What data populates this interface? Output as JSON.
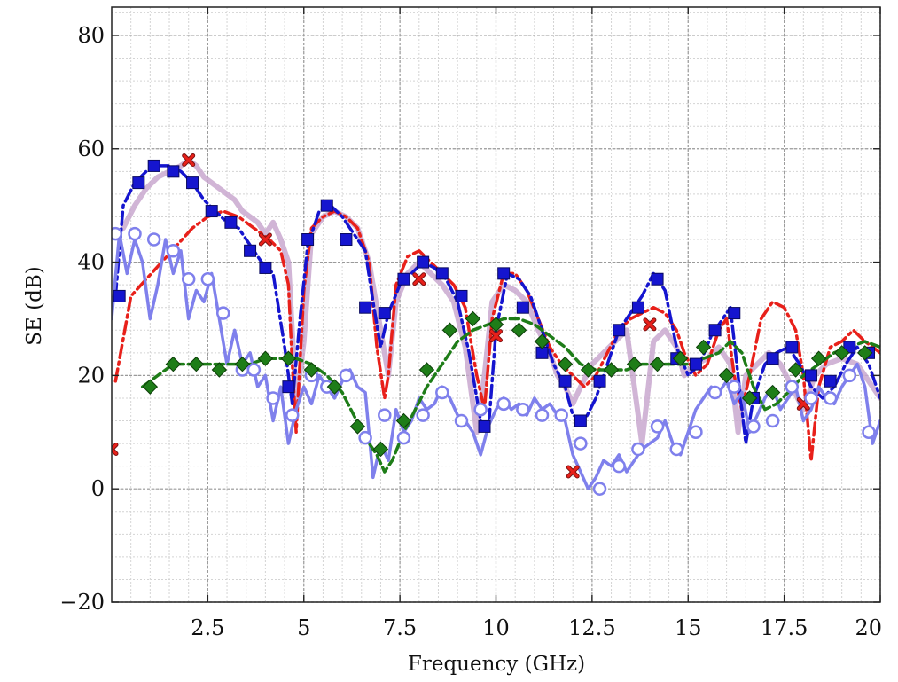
{
  "chart_data": {
    "type": "line",
    "title": "",
    "xlabel": "Frequency (GHz)",
    "ylabel": "SE (dB)",
    "xlim": [
      0,
      20
    ],
    "ylim": [
      -20,
      85
    ],
    "grid": true,
    "legend": "",
    "x_ticks": [
      {
        "value": 2.5,
        "label": "2.5"
      },
      {
        "value": 5,
        "label": "5"
      },
      {
        "value": 7.5,
        "label": "7.5"
      },
      {
        "value": 10,
        "label": "10"
      },
      {
        "value": 12.5,
        "label": "12.5"
      },
      {
        "value": 15,
        "label": "15"
      },
      {
        "value": 17.5,
        "label": "17.5"
      },
      {
        "value": 20,
        "label": "20"
      }
    ],
    "y_ticks": [
      {
        "value": -20,
        "label": "−20"
      },
      {
        "value": 0,
        "label": "0"
      },
      {
        "value": 20,
        "label": "20"
      },
      {
        "value": 40,
        "label": "40"
      },
      {
        "value": 60,
        "label": "60"
      },
      {
        "value": 80,
        "label": "80"
      }
    ],
    "series": [
      {
        "style": "solid",
        "color": "#c9a8cf",
        "width": 6,
        "marker": "none",
        "x": [
          0.3,
          0.6,
          0.9,
          1.2,
          1.5,
          1.8,
          2.0,
          2.2,
          2.4,
          2.6,
          2.8,
          3.0,
          3.2,
          3.4,
          3.6,
          3.8,
          4.0,
          4.2,
          4.4,
          4.6,
          4.8,
          5.0,
          5.2,
          5.5,
          5.8,
          6.1,
          6.4,
          6.7,
          7.0,
          7.2,
          7.4,
          7.7,
          8.0,
          8.3,
          8.6,
          8.9,
          9.2,
          9.5,
          9.7,
          9.9,
          10.2,
          10.5,
          10.8,
          11.1,
          11.4,
          11.6,
          11.8,
          12.0,
          12.2,
          12.5,
          12.8,
          13.1,
          13.4,
          13.6,
          13.8,
          14.1,
          14.4,
          14.7,
          14.9,
          15.2,
          15.5,
          15.8,
          16.1,
          16.3,
          16.5,
          16.8,
          17.1,
          17.4,
          17.7,
          18.0,
          18.3,
          18.6,
          19.0,
          19.4,
          19.8,
          20.0
        ],
        "y": [
          46,
          50,
          53,
          55,
          56,
          57,
          58,
          57,
          55,
          54,
          53,
          52,
          51,
          49,
          48,
          47,
          45,
          47,
          44,
          40,
          15,
          26,
          45,
          48,
          49,
          48,
          46,
          40,
          28,
          20,
          33,
          38,
          40,
          38,
          36,
          33,
          25,
          10,
          20,
          33,
          36,
          35,
          33,
          28,
          24,
          20,
          18,
          15,
          18,
          22,
          24,
          26,
          28,
          18,
          8,
          26,
          28,
          25,
          20,
          22,
          23,
          25,
          22,
          10,
          20,
          22,
          24,
          22,
          18,
          14,
          20,
          22,
          23,
          22,
          18,
          16
        ]
      },
      {
        "style": "dashdot",
        "color": "#e8201a",
        "width": 3.5,
        "marker": "cross",
        "x": [
          0.1,
          0.5,
          0.9,
          1.3,
          1.7,
          2.1,
          2.5,
          2.9,
          3.3,
          3.7,
          4.1,
          4.4,
          4.6,
          4.7,
          4.8,
          5.0,
          5.2,
          5.5,
          5.8,
          6.1,
          6.4,
          6.7,
          6.9,
          7.1,
          7.2,
          7.4,
          7.7,
          8.0,
          8.3,
          8.6,
          8.9,
          9.2,
          9.5,
          9.7,
          9.9,
          10.2,
          10.5,
          10.8,
          11.1,
          11.4,
          11.7,
          12.0,
          12.3,
          12.6,
          12.9,
          13.2,
          13.5,
          13.8,
          14.1,
          14.4,
          14.7,
          14.9,
          15.2,
          15.5,
          15.8,
          16.0,
          16.2,
          16.4,
          16.6,
          16.9,
          17.2,
          17.5,
          17.8,
          18.0,
          18.2,
          18.4,
          18.7,
          19.0,
          19.3,
          19.6,
          20.0
        ],
        "y": [
          19,
          34,
          37,
          40,
          43,
          46,
          48,
          49,
          48,
          46,
          44,
          42,
          36,
          22,
          10,
          35,
          46,
          48,
          49,
          48,
          46,
          40,
          25,
          16,
          20,
          36,
          41,
          42,
          40,
          38,
          36,
          32,
          20,
          14,
          30,
          38,
          38,
          35,
          30,
          25,
          22,
          20,
          18,
          20,
          24,
          28,
          30,
          31,
          32,
          31,
          28,
          24,
          20,
          22,
          28,
          30,
          20,
          14,
          20,
          30,
          33,
          32,
          28,
          20,
          5,
          18,
          25,
          26,
          28,
          26,
          24
        ],
        "markers_x": [
          0,
          2,
          4,
          8,
          10,
          12,
          14,
          18
        ],
        "markers_y": [
          7,
          58,
          44,
          37,
          27,
          3,
          29,
          15
        ]
      },
      {
        "style": "dashdot",
        "color": "#1515cf",
        "width": 3.5,
        "marker": "square",
        "x": [
          0.1,
          0.3,
          0.6,
          0.9,
          1.2,
          1.5,
          1.8,
          2.1,
          2.4,
          2.7,
          3.0,
          3.3,
          3.6,
          3.9,
          4.2,
          4.5,
          4.7,
          4.9,
          5.1,
          5.4,
          5.7,
          6.0,
          6.3,
          6.6,
          6.8,
          7.0,
          7.2,
          7.5,
          7.8,
          8.1,
          8.4,
          8.7,
          9.0,
          9.3,
          9.6,
          9.8,
          10.0,
          10.3,
          10.6,
          10.9,
          11.2,
          11.5,
          11.8,
          12.0,
          12.3,
          12.6,
          12.9,
          13.2,
          13.5,
          13.8,
          14.1,
          14.4,
          14.7,
          15.0,
          15.3,
          15.6,
          15.9,
          16.1,
          16.3,
          16.5,
          16.7,
          17.0,
          17.3,
          17.6,
          17.9,
          18.2,
          18.5,
          18.8,
          19.1,
          19.4,
          19.7,
          20.0
        ],
        "y": [
          34,
          50,
          54,
          56,
          57,
          57,
          56,
          54,
          51,
          49,
          47,
          46,
          43,
          40,
          38,
          25,
          15,
          30,
          43,
          49,
          50,
          48,
          45,
          42,
          33,
          25,
          31,
          36,
          38,
          40,
          39,
          37,
          33,
          24,
          12,
          10,
          28,
          38,
          37,
          34,
          28,
          22,
          18,
          13,
          12,
          16,
          22,
          28,
          31,
          34,
          38,
          35,
          25,
          20,
          22,
          27,
          30,
          32,
          20,
          8,
          16,
          22,
          24,
          25,
          22,
          18,
          16,
          18,
          22,
          25,
          22,
          16
        ],
        "markers_x": [
          0.2,
          0.7,
          1.1,
          1.6,
          2.1,
          2.6,
          3.1,
          3.6,
          4.0,
          4.6,
          5.1,
          5.6,
          6.1,
          6.6,
          7.1,
          7.6,
          8.1,
          8.6,
          9.1,
          9.7,
          10.2,
          10.7,
          11.2,
          11.8,
          12.2,
          12.7,
          13.2,
          13.7,
          14.2,
          14.7,
          15.2,
          15.7,
          16.2,
          16.7,
          17.2,
          17.7,
          18.2,
          18.7,
          19.2,
          19.7
        ],
        "markers_y": [
          34,
          54,
          57,
          56,
          54,
          49,
          47,
          42,
          39,
          18,
          44,
          50,
          44,
          32,
          31,
          37,
          40,
          38,
          34,
          11,
          38,
          32,
          24,
          19,
          12,
          19,
          28,
          32,
          37,
          23,
          22,
          28,
          31,
          16,
          23,
          25,
          20,
          19,
          25,
          24
        ]
      },
      {
        "style": "solid",
        "color": "#7f80ec",
        "width": 3.5,
        "marker": "circle",
        "x": [
          0,
          0.2,
          0.4,
          0.6,
          0.8,
          1.0,
          1.2,
          1.4,
          1.6,
          1.8,
          2.0,
          2.2,
          2.4,
          2.6,
          2.8,
          3.0,
          3.2,
          3.4,
          3.6,
          3.8,
          4.0,
          4.2,
          4.4,
          4.6,
          4.8,
          5.0,
          5.2,
          5.4,
          5.6,
          5.8,
          6.0,
          6.2,
          6.4,
          6.6,
          6.8,
          7.0,
          7.2,
          7.4,
          7.6,
          7.8,
          8.0,
          8.2,
          8.4,
          8.6,
          8.8,
          9.0,
          9.2,
          9.4,
          9.6,
          9.8,
          10.0,
          10.2,
          10.4,
          10.6,
          10.8,
          11.0,
          11.2,
          11.4,
          11.6,
          11.8,
          12.0,
          12.2,
          12.4,
          12.6,
          12.8,
          13.0,
          13.2,
          13.4,
          13.6,
          13.8,
          14.0,
          14.2,
          14.4,
          14.6,
          14.8,
          15.0,
          15.2,
          15.4,
          15.6,
          15.8,
          16.0,
          16.2,
          16.4,
          16.6,
          16.8,
          17.0,
          17.2,
          17.4,
          17.6,
          17.8,
          18.0,
          18.2,
          18.4,
          18.6,
          18.8,
          19.0,
          19.2,
          19.4,
          19.6,
          19.8,
          20.0
        ],
        "y": [
          30,
          45,
          38,
          44,
          40,
          30,
          36,
          44,
          38,
          42,
          30,
          35,
          33,
          38,
          30,
          22,
          28,
          22,
          24,
          18,
          20,
          12,
          18,
          8,
          14,
          18,
          15,
          20,
          18,
          16,
          19,
          21,
          18,
          17,
          2,
          8,
          5,
          14,
          10,
          12,
          16,
          14,
          15,
          18,
          16,
          13,
          12,
          10,
          6,
          11,
          14,
          16,
          14,
          15,
          13,
          16,
          14,
          15,
          13,
          12,
          6,
          3,
          0,
          2,
          5,
          4,
          6,
          3,
          5,
          7,
          8,
          9,
          12,
          8,
          6,
          10,
          14,
          16,
          18,
          17,
          19,
          15,
          17,
          10,
          13,
          16,
          18,
          14,
          16,
          18,
          12,
          14,
          18,
          16,
          15,
          18,
          20,
          22,
          18,
          8,
          12
        ],
        "markers_x": [
          0.1,
          0.6,
          1.1,
          1.6,
          2.0,
          2.5,
          2.9,
          3.4,
          3.7,
          4.2,
          4.7,
          5.2,
          5.6,
          6.1,
          6.6,
          7.1,
          7.6,
          8.1,
          8.6,
          9.1,
          9.6,
          10.2,
          10.7,
          11.2,
          11.7,
          12.2,
          12.7,
          13.2,
          13.7,
          14.2,
          14.7,
          15.2,
          15.7,
          16.2,
          16.7,
          17.2,
          17.7,
          18.2,
          18.7,
          19.2,
          19.7
        ],
        "markers_y": [
          45,
          45,
          44,
          42,
          37,
          37,
          31,
          21,
          21,
          16,
          13,
          20,
          18,
          20,
          9,
          13,
          9,
          13,
          17,
          12,
          14,
          15,
          14,
          13,
          13,
          8,
          0,
          4,
          7,
          11,
          7,
          10,
          17,
          18,
          11,
          12,
          18,
          16,
          16,
          20,
          10
        ]
      },
      {
        "style": "dashed",
        "color": "#1e7d18",
        "width": 3.5,
        "marker": "diamond",
        "x": [
          0.8,
          1.2,
          1.6,
          2.0,
          2.4,
          2.8,
          3.2,
          3.6,
          4.0,
          4.4,
          4.8,
          5.2,
          5.6,
          6.0,
          6.3,
          6.6,
          6.9,
          7.1,
          7.3,
          7.6,
          7.9,
          8.2,
          8.6,
          9.0,
          9.4,
          9.8,
          10.2,
          10.6,
          11.0,
          11.4,
          11.8,
          12.2,
          12.6,
          13.0,
          13.4,
          13.8,
          14.2,
          14.6,
          15.0,
          15.4,
          15.8,
          16.1,
          16.4,
          16.7,
          17.0,
          17.3,
          17.6,
          18.0,
          18.4,
          18.8,
          19.2,
          19.6,
          20.0
        ],
        "y": [
          18,
          20,
          22,
          22,
          22,
          22,
          22,
          22,
          23,
          23,
          23,
          22,
          20,
          17,
          13,
          9,
          6,
          3,
          5,
          10,
          14,
          18,
          22,
          26,
          28,
          29,
          30,
          30,
          29,
          27,
          25,
          22,
          21,
          21,
          21,
          22,
          22,
          22,
          22,
          23,
          24,
          26,
          24,
          18,
          14,
          15,
          17,
          20,
          22,
          24,
          25,
          26,
          25
        ],
        "markers_x": [
          1.0,
          1.6,
          2.2,
          2.8,
          3.4,
          4.0,
          4.6,
          5.2,
          5.8,
          6.4,
          7.0,
          7.6,
          8.2,
          8.8,
          9.4,
          10.0,
          10.6,
          11.2,
          11.8,
          12.4,
          13.0,
          13.6,
          14.2,
          14.8,
          15.4,
          16.0,
          16.6,
          17.2,
          17.8,
          18.4,
          19.0,
          19.6
        ],
        "markers_y": [
          18,
          22,
          22,
          21,
          22,
          23,
          23,
          21,
          18,
          11,
          7,
          12,
          21,
          28,
          30,
          29,
          28,
          26,
          22,
          21,
          21,
          22,
          22,
          23,
          25,
          20,
          16,
          17,
          21,
          23,
          24,
          24
        ]
      }
    ]
  }
}
